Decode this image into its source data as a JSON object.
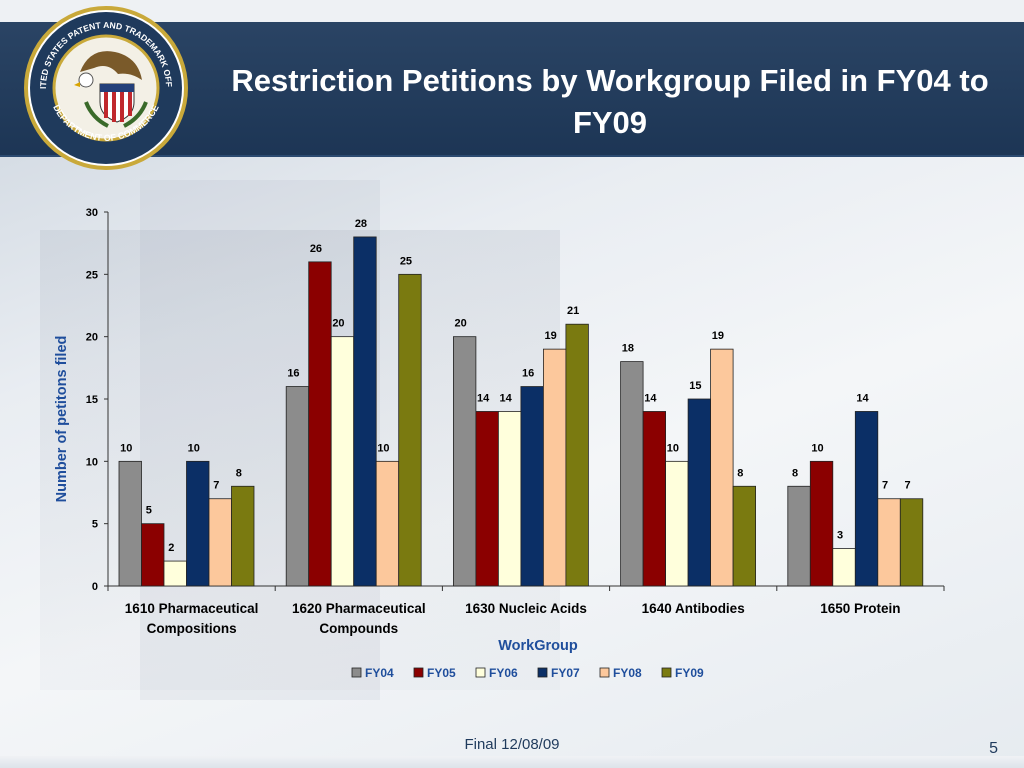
{
  "slide": {
    "title": "Restriction Petitions by Workgroup Filed in FY04 to FY09",
    "footer": "Final 12/08/09",
    "page_number": "5"
  },
  "seal": {
    "outer_text": "UNITED STATES PATENT AND TRADEMARK OFFICE",
    "inner_text": "DEPARTMENT OF COMMERCE"
  },
  "colors": {
    "header_bg": "#1f3a5c",
    "axis_label": "#1f4e9c",
    "FY04": "#8c8c8c",
    "FY05": "#8b0000",
    "FY06": "#ffffdc",
    "FY07": "#0b2f66",
    "FY08": "#fcc89c",
    "FY09": "#7a7a10"
  },
  "chart_data": {
    "type": "bar",
    "categories": [
      [
        "1610 Pharmaceutical",
        "Compositions"
      ],
      [
        "1620 Pharmaceutical",
        "Compounds"
      ],
      [
        "1630 Nucleic Acids"
      ],
      [
        "1640 Antibodies"
      ],
      [
        "1650 Protein"
      ]
    ],
    "series": [
      {
        "name": "FY04",
        "values": [
          10,
          16,
          20,
          18,
          8
        ]
      },
      {
        "name": "FY05",
        "values": [
          5,
          26,
          14,
          14,
          10
        ]
      },
      {
        "name": "FY06",
        "values": [
          2,
          20,
          14,
          10,
          3
        ]
      },
      {
        "name": "FY07",
        "values": [
          10,
          28,
          16,
          15,
          14
        ]
      },
      {
        "name": "FY08",
        "values": [
          7,
          10,
          19,
          19,
          7
        ]
      },
      {
        "name": "FY09",
        "values": [
          8,
          25,
          21,
          8,
          7
        ]
      }
    ],
    "xlabel": "WorkGroup",
    "ylabel": "Number of petitons filed",
    "ylim": [
      0,
      30
    ],
    "yticks": [
      0,
      5,
      10,
      15,
      20,
      25,
      30
    ],
    "grid": false,
    "legend_position": "bottom",
    "data_labels": true
  }
}
